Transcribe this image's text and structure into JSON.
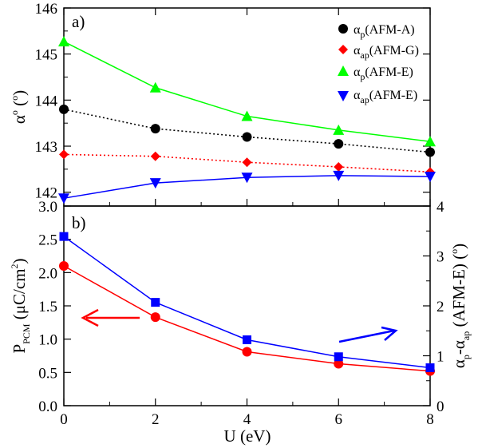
{
  "chart_data": [
    {
      "type": "line",
      "panel_label": "a)",
      "x": [
        0,
        2,
        4,
        6,
        8
      ],
      "xlim": [
        0,
        8
      ],
      "ylim": [
        141.7,
        146.0
      ],
      "yticks": [
        "142",
        "143",
        "144",
        "145",
        "146"
      ],
      "ylabel": {
        "main": "α",
        "sup": "o",
        "tail": " (",
        "sup2": "o",
        "close": ")"
      },
      "series": [
        {
          "name": "AFM-A",
          "sym": "α",
          "sub": "p",
          "marker": "circle",
          "color": "#000000",
          "line": "dotted",
          "values": [
            143.8,
            143.38,
            143.2,
            143.05,
            142.87
          ]
        },
        {
          "name": "AFM-G",
          "sym": "α",
          "sub": "ap",
          "marker": "diamond",
          "color": "#ff0000",
          "line": "dotted",
          "values": [
            142.82,
            142.78,
            142.65,
            142.55,
            142.44
          ]
        },
        {
          "name": "AFM-E",
          "sym": "α",
          "sub": "p",
          "marker": "triangle-up",
          "color": "#00ff00",
          "line": "solid",
          "values": [
            145.27,
            144.27,
            143.65,
            143.35,
            143.1
          ]
        },
        {
          "name": "AFM-E",
          "sym": "α",
          "sub": "ap",
          "marker": "triangle-down",
          "color": "#0000ff",
          "line": "solid",
          "values": [
            141.87,
            142.2,
            142.32,
            142.36,
            142.34
          ]
        }
      ],
      "legend": "top-right"
    },
    {
      "type": "line",
      "panel_label": "b)",
      "x": [
        0,
        2,
        4,
        6,
        8
      ],
      "xlim": [
        0,
        8
      ],
      "xticks": [
        "0",
        "2",
        "4",
        "6",
        "8"
      ],
      "xlabel": "U (eV)",
      "ylim_left": [
        0.0,
        3.0
      ],
      "yticks_left": [
        "0.0",
        "0.5",
        "1.0",
        "1.5",
        "2.0",
        "2.5",
        "3.0"
      ],
      "ylabel_left": {
        "main": "P",
        "sub": "PCM",
        "mid": " (μC/cm",
        "sup": "2",
        "close": ")"
      },
      "ylim_right": [
        0,
        4
      ],
      "yticks_right": [
        "0",
        "1",
        "2",
        "3",
        "4"
      ],
      "ylabel_right": {
        "a": "α",
        "sub1": "p",
        "dash": "-α",
        "sub2": "ap",
        "rest": " (AFM-E) (",
        "sup": "o",
        "close": ")"
      },
      "series": [
        {
          "axis": "left",
          "marker": "circle",
          "color": "#ff0000",
          "values": [
            2.1,
            1.33,
            0.81,
            0.63,
            0.52
          ]
        },
        {
          "axis": "right",
          "marker": "square",
          "color": "#0000ff",
          "values": [
            3.39,
            2.07,
            1.32,
            0.98,
            0.76
          ]
        }
      ],
      "arrows": {
        "left_color": "#ff0000",
        "right_color": "#0000ff"
      }
    }
  ]
}
